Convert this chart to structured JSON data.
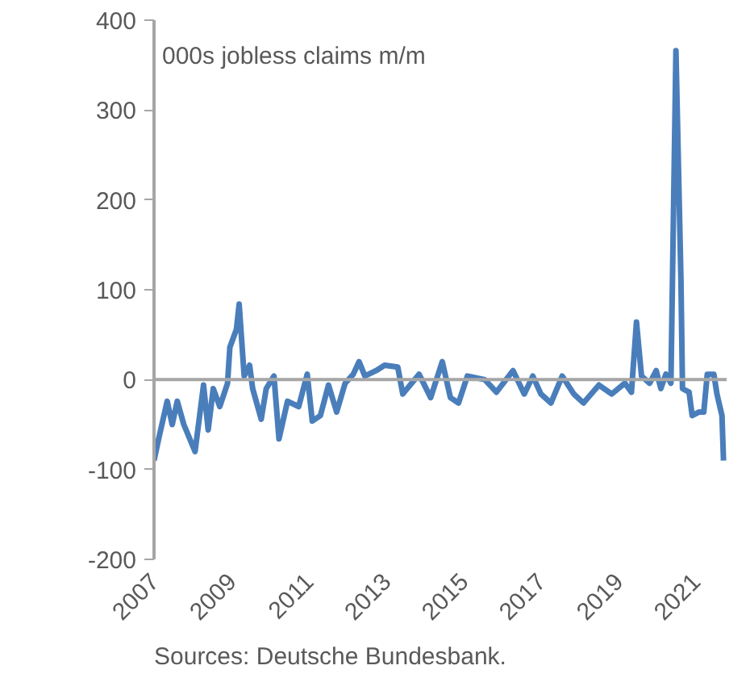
{
  "chart_data": {
    "type": "line",
    "x": [
      2007.0,
      2007.13,
      2007.34,
      2007.47,
      2007.6,
      2007.77,
      2008.06,
      2008.28,
      2008.4,
      2008.53,
      2008.7,
      2008.9,
      2008.96,
      2009.13,
      2009.2,
      2009.33,
      2009.47,
      2009.55,
      2009.77,
      2009.9,
      2010.1,
      2010.23,
      2010.45,
      2010.74,
      2010.96,
      2011.09,
      2011.3,
      2011.51,
      2011.72,
      2011.94,
      2012.15,
      2012.3,
      2012.45,
      2012.74,
      2012.96,
      2013.3,
      2013.43,
      2013.85,
      2014.15,
      2014.45,
      2014.66,
      2014.87,
      2015.1,
      2015.55,
      2015.85,
      2016.28,
      2016.57,
      2016.79,
      2017.0,
      2017.26,
      2017.55,
      2017.85,
      2018.1,
      2018.5,
      2018.83,
      2019.17,
      2019.34,
      2019.47,
      2019.6,
      2019.81,
      2019.98,
      2020.1,
      2020.23,
      2020.36,
      2020.49,
      2020.62,
      2020.66,
      2020.83,
      2020.91,
      2021.09,
      2021.21,
      2021.3,
      2021.47,
      2021.55,
      2021.68,
      2021.72
    ],
    "series": [
      {
        "color": "#4a7ebb",
        "values": [
          -90,
          -64,
          -24,
          -50,
          -24,
          -50,
          -80,
          -6,
          -56,
          -10,
          -30,
          -4,
          36,
          56,
          84,
          4,
          16,
          -10,
          -44,
          -10,
          4,
          -66,
          -24,
          -30,
          6,
          -46,
          -40,
          -6,
          -36,
          -4,
          6,
          20,
          4,
          10,
          16,
          14,
          -16,
          6,
          -20,
          20,
          -20,
          -26,
          4,
          0,
          -14,
          10,
          -16,
          4,
          -16,
          -26,
          4,
          -16,
          -26,
          -6,
          -16,
          -4,
          -14,
          64,
          4,
          -4,
          10,
          -10,
          6,
          -4,
          366,
          110,
          -10,
          -14,
          -40,
          -36,
          -36,
          6,
          6,
          -16,
          -40,
          -90
        ]
      }
    ],
    "xlim": [
      2007,
      2021.8
    ],
    "xticks": [
      2007,
      2009,
      2011,
      2013,
      2015,
      2017,
      2019,
      2021
    ],
    "ylim": [
      -200,
      400
    ],
    "yticks": [
      -200,
      -100,
      0,
      100,
      200,
      300,
      400
    ],
    "ref_lines": [
      {
        "axis": "y",
        "value": 0,
        "color": "#a6a6a6"
      }
    ],
    "grid": false,
    "marker": "none",
    "line_style": "solid",
    "annotations": [
      "000s jobless claims m/m",
      "Sources: Deutsche Bundesbank."
    ]
  }
}
